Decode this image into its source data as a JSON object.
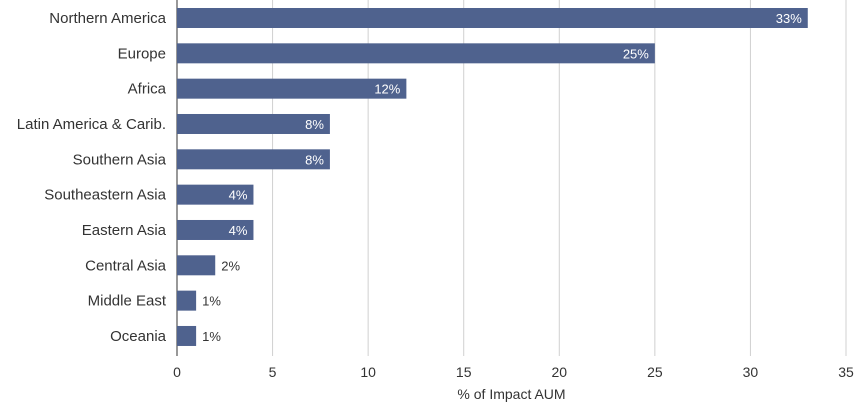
{
  "chart_data": {
    "type": "bar",
    "orientation": "horizontal",
    "categories": [
      "Northern America",
      "Europe",
      "Africa",
      "Latin America & Carib.",
      "Southern Asia",
      "Southeastern Asia",
      "Eastern Asia",
      "Central Asia",
      "Middle East",
      "Oceania"
    ],
    "values": [
      33,
      25,
      12,
      8,
      8,
      4,
      4,
      2,
      1,
      1
    ],
    "value_labels": [
      "33%",
      "25%",
      "12%",
      "8%",
      "8%",
      "4%",
      "4%",
      "2%",
      "1%",
      "1%"
    ],
    "xlabel": "% of Impact AUM",
    "ylabel": "",
    "xlim": [
      0,
      35
    ],
    "xticks": [
      0,
      5,
      10,
      15,
      20,
      25,
      30,
      35
    ],
    "grid": "vertical",
    "bar_color": "#4f628e",
    "grid_color": "#d0d0d0"
  }
}
